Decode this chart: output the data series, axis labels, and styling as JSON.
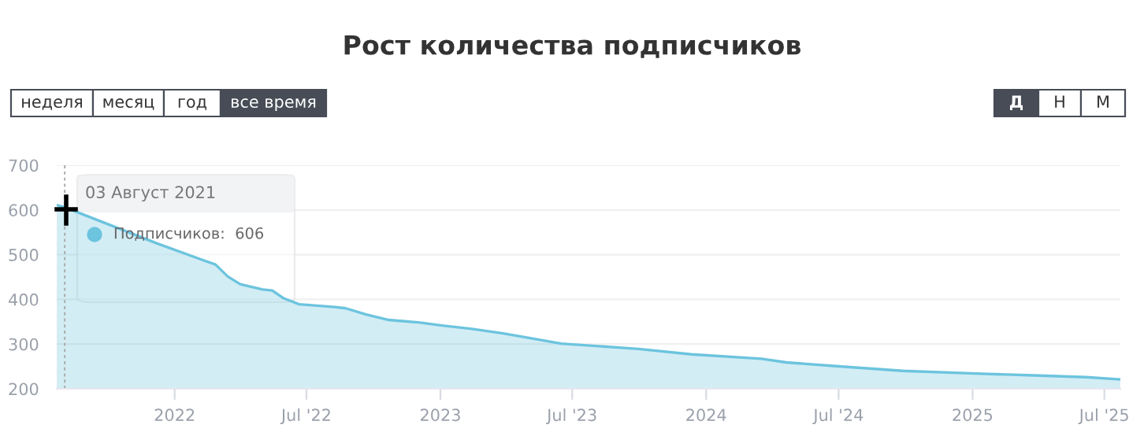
{
  "chart_data": {
    "type": "area",
    "title": "Рост количества подписчиков",
    "x": [
      "2021-07-23",
      "2021-08-03",
      "2021-12-08",
      "2022-02-05",
      "2022-02-26",
      "2022-03-15",
      "2022-04-01",
      "2022-05-02",
      "2022-05-15",
      "2022-05-30",
      "2022-06-21",
      "2022-08-09",
      "2022-08-24",
      "2022-09-21",
      "2022-10-22",
      "2022-12-04",
      "2023-01-01",
      "2023-02-13",
      "2023-03-28",
      "2023-04-25",
      "2023-06-16",
      "2023-07-14",
      "2023-09-30",
      "2023-12-12",
      "2024-03-17",
      "2024-04-20",
      "2024-06-24",
      "2024-09-27",
      "2025-01-05",
      "2025-03-26",
      "2025-06-06",
      "2025-07-23"
    ],
    "series": [
      {
        "color": "#6cc4de",
        "values": [
          611,
          606,
          525,
          490,
          478,
          451,
          434,
          422,
          420,
          403,
          389,
          383,
          380,
          366,
          354,
          348,
          342,
          334,
          324,
          316,
          301,
          298,
          289,
          277,
          267,
          259,
          251,
          240,
          234,
          230,
          226,
          221
        ]
      }
    ],
    "xlim": [
      "2021-07-23",
      "2025-07-23"
    ],
    "xticks": [
      {
        "value": "2022-01-01",
        "label": "2022"
      },
      {
        "value": "2022-07-01",
        "label": "Jul '22"
      },
      {
        "value": "2023-01-01",
        "label": "2023"
      },
      {
        "value": "2023-07-01",
        "label": "Jul '23"
      },
      {
        "value": "2024-01-01",
        "label": "2024"
      },
      {
        "value": "2024-07-01",
        "label": "Jul '24"
      },
      {
        "value": "2025-01-01",
        "label": "2025"
      },
      {
        "value": "2025-07-01",
        "label": "Jul '25"
      }
    ],
    "ref_lines": [
      {
        "axis": "x",
        "value": "2021-08-03",
        "color": "#aaaaaa",
        "line_style": "dashed"
      }
    ],
    "ylim": [
      200,
      700
    ],
    "yticks": [
      200,
      300,
      400,
      500,
      600,
      700
    ],
    "grid": "y",
    "legend": false,
    "annotations": [
      "неделя",
      "месяц",
      "год",
      "все время",
      "Д",
      "Н",
      "М",
      "03 Август 2021",
      "Подписчиков:  606"
    ]
  }
}
